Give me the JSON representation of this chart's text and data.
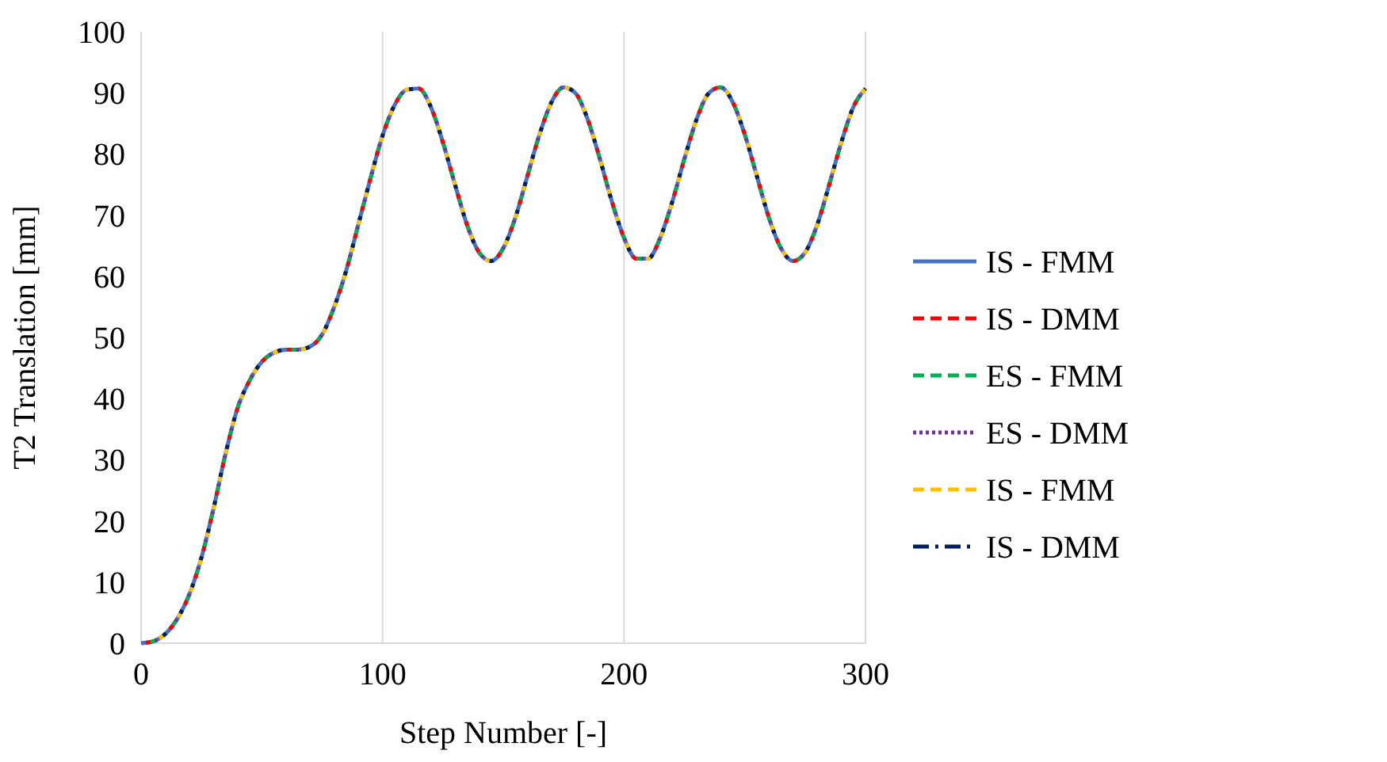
{
  "chart_data": {
    "type": "line",
    "xlabel": "Step Number [-]",
    "ylabel": "T2 Translation [mm]",
    "x": [
      0,
      5,
      10,
      15,
      20,
      25,
      30,
      35,
      40,
      45,
      50,
      55,
      60,
      65,
      70,
      75,
      80,
      85,
      90,
      95,
      100,
      105,
      110,
      115,
      120,
      125,
      130,
      135,
      140,
      145,
      150,
      155,
      160,
      165,
      170,
      175,
      180,
      185,
      190,
      195,
      200,
      205,
      210,
      215,
      220,
      225,
      230,
      235,
      240,
      245,
      250,
      255,
      260,
      265,
      270,
      275,
      280,
      285,
      290,
      295,
      300
    ],
    "xlim": [
      0,
      300
    ],
    "xticks": [
      0,
      100,
      200,
      300
    ],
    "ylim": [
      0,
      100
    ],
    "yticks": [
      0,
      10,
      20,
      30,
      40,
      50,
      60,
      70,
      80,
      90,
      100
    ],
    "grid": "x",
    "legend": "right",
    "marker": "none",
    "series": [
      {
        "name": "IS - FMM",
        "color": "#4472c4",
        "line_style": "solid",
        "values": [
          0,
          0.3,
          1.5,
          4,
          8,
          14,
          22,
          31,
          38.5,
          43,
          46,
          47.5,
          48,
          48,
          48.5,
          50.5,
          55,
          61,
          68.5,
          76,
          83,
          88,
          90.5,
          90.7,
          87.7,
          81.9,
          75,
          68.4,
          63.9,
          62.5,
          64.6,
          69.6,
          76.4,
          83.2,
          88.5,
          90.9,
          89.9,
          85.6,
          79.2,
          72.2,
          66.3,
          62.9,
          62.9,
          66.3,
          72.2,
          79.2,
          85.6,
          89.9,
          90.9,
          88.5,
          83.2,
          76.4,
          69.6,
          64.6,
          62.5,
          63.9,
          68.4,
          75,
          81.9,
          87.7,
          90.7
        ]
      },
      {
        "name": "IS - DMM",
        "color": "#ff0000",
        "line_style": "dashed",
        "values": [
          0,
          0.3,
          1.5,
          4,
          8,
          14,
          22,
          31,
          38.5,
          43,
          46,
          47.5,
          48,
          48,
          48.5,
          50.5,
          55,
          61,
          68.5,
          76,
          83,
          88,
          90.5,
          90.7,
          87.7,
          81.9,
          75,
          68.4,
          63.9,
          62.5,
          64.6,
          69.6,
          76.4,
          83.2,
          88.5,
          90.9,
          89.9,
          85.6,
          79.2,
          72.2,
          66.3,
          62.9,
          62.9,
          66.3,
          72.2,
          79.2,
          85.6,
          89.9,
          90.9,
          88.5,
          83.2,
          76.4,
          69.6,
          64.6,
          62.5,
          63.9,
          68.4,
          75,
          81.9,
          87.7,
          90.7
        ]
      },
      {
        "name": "ES - FMM",
        "color": "#00b050",
        "line_style": "dashed",
        "values": [
          0,
          0.3,
          1.5,
          4,
          8,
          14,
          22,
          31,
          38.5,
          43,
          46,
          47.5,
          48,
          48,
          48.5,
          50.5,
          55,
          61,
          68.5,
          76,
          83,
          88,
          90.5,
          90.7,
          87.7,
          81.9,
          75,
          68.4,
          63.9,
          62.5,
          64.6,
          69.6,
          76.4,
          83.2,
          88.5,
          90.9,
          89.9,
          85.6,
          79.2,
          72.2,
          66.3,
          62.9,
          62.9,
          66.3,
          72.2,
          79.2,
          85.6,
          89.9,
          90.9,
          88.5,
          83.2,
          76.4,
          69.6,
          64.6,
          62.5,
          63.9,
          68.4,
          75,
          81.9,
          87.7,
          90.7
        ]
      },
      {
        "name": "ES - DMM",
        "color": "#7030a0",
        "line_style": "dotted",
        "values": [
          0,
          0.3,
          1.5,
          4,
          8,
          14,
          22,
          31,
          38.5,
          43,
          46,
          47.5,
          48,
          48,
          48.5,
          50.5,
          55,
          61,
          68.5,
          76,
          83,
          88,
          90.5,
          90.7,
          87.7,
          81.9,
          75,
          68.4,
          63.9,
          62.5,
          64.6,
          69.6,
          76.4,
          83.2,
          88.5,
          90.9,
          89.9,
          85.6,
          79.2,
          72.2,
          66.3,
          62.9,
          62.9,
          66.3,
          72.2,
          79.2,
          85.6,
          89.9,
          90.9,
          88.5,
          83.2,
          76.4,
          69.6,
          64.6,
          62.5,
          63.9,
          68.4,
          75,
          81.9,
          87.7,
          90.7
        ]
      },
      {
        "name": "IS - FMM",
        "color": "#ffc000",
        "line_style": "dashed",
        "values": [
          0,
          0.3,
          1.5,
          4,
          8,
          14,
          22,
          31,
          38.5,
          43,
          46,
          47.5,
          48,
          48,
          48.5,
          50.5,
          55,
          61,
          68.5,
          76,
          83,
          88,
          90.5,
          90.7,
          87.7,
          81.9,
          75,
          68.4,
          63.9,
          62.5,
          64.6,
          69.6,
          76.4,
          83.2,
          88.5,
          90.9,
          89.9,
          85.6,
          79.2,
          72.2,
          66.3,
          62.9,
          62.9,
          66.3,
          72.2,
          79.2,
          85.6,
          89.9,
          90.9,
          88.5,
          83.2,
          76.4,
          69.6,
          64.6,
          62.5,
          63.9,
          68.4,
          75,
          81.9,
          87.7,
          90.7
        ]
      },
      {
        "name": "IS - DMM",
        "color": "#002060",
        "line_style": "dashdot",
        "values": [
          0,
          0.3,
          1.5,
          4,
          8,
          14,
          22,
          31,
          38.5,
          43,
          46,
          47.5,
          48,
          48,
          48.5,
          50.5,
          55,
          61,
          68.5,
          76,
          83,
          88,
          90.5,
          90.7,
          87.7,
          81.9,
          75,
          68.4,
          63.9,
          62.5,
          64.6,
          69.6,
          76.4,
          83.2,
          88.5,
          90.9,
          89.9,
          85.6,
          79.2,
          72.2,
          66.3,
          62.9,
          62.9,
          66.3,
          72.2,
          79.2,
          85.6,
          89.9,
          90.9,
          88.5,
          83.2,
          76.4,
          69.6,
          64.6,
          62.5,
          63.9,
          68.4,
          75,
          81.9,
          87.7,
          90.7
        ]
      }
    ]
  }
}
